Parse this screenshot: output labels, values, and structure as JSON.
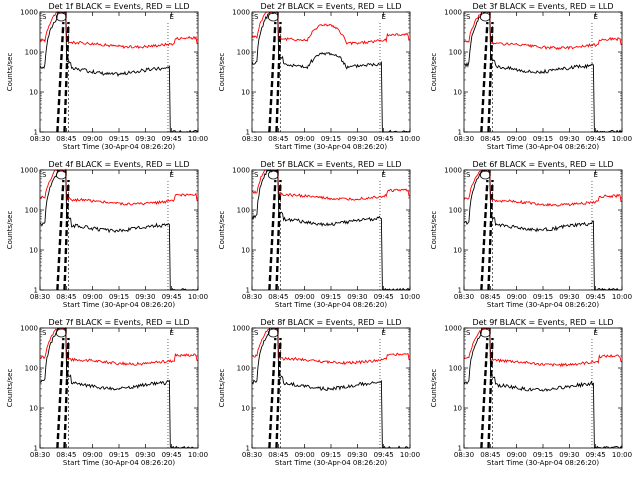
{
  "common": {
    "title_suffix": "BLACK = Events, RED = LLD",
    "ylabel": "Counts/sec",
    "y_ticks": [
      "1000",
      "100",
      "10",
      "1"
    ],
    "y_scale": "log",
    "ylim": [
      1,
      1000
    ],
    "x_ticks_a": [
      "08:30",
      "08:45",
      "09:00",
      "09:15",
      "09:30",
      "09:45",
      "10:00"
    ],
    "x_ticks_b": [
      "08:30",
      "08:45",
      "09:00",
      "09:15",
      "09:30",
      "09:45",
      "10:00"
    ],
    "marker_s": "S",
    "marker_e": "E",
    "colors": {
      "events": "#000000",
      "lld": "#ff0000"
    }
  },
  "chart_data": [
    {
      "type": "line",
      "title": "Det 1f",
      "xlabel": "Start Time (30-Apr-04 08:26:20)",
      "lld_level": 180,
      "evt_level": 35,
      "spike": 1.0
    },
    {
      "type": "line",
      "title": "Det 2f",
      "xlabel": "Start Time (30-Apr-04 08:26:20)",
      "lld_level": 220,
      "evt_level": 45,
      "spike": 2.5
    },
    {
      "type": "line",
      "title": "Det 3f",
      "xlabel": "Start Time (30-Apr-04 08:26:20)",
      "lld_level": 170,
      "evt_level": 40,
      "spike": 1.0
    },
    {
      "type": "line",
      "title": "Det 4f",
      "xlabel": "Start Time (30-Apr-04 08:26:20)",
      "lld_level": 190,
      "evt_level": 38,
      "spike": 1.0
    },
    {
      "type": "line",
      "title": "Det 5f",
      "xlabel": "Start Time (30-Apr-04 08:26:20)",
      "lld_level": 250,
      "evt_level": 55,
      "spike": 1.0
    },
    {
      "type": "line",
      "title": "Det 6f",
      "xlabel": "Start Time (30-Apr-04 08:26:20)",
      "lld_level": 180,
      "evt_level": 40,
      "spike": 1.0
    },
    {
      "type": "line",
      "title": "Det 7f",
      "xlabel": "Start Time (30-Apr-04 08:26:20)",
      "lld_level": 170,
      "evt_level": 38,
      "spike": 1.0
    },
    {
      "type": "line",
      "title": "Det 8f",
      "xlabel": "Start Time (30-Apr-04 08:26:20)",
      "lld_level": 180,
      "evt_level": 38,
      "spike": 1.0
    },
    {
      "type": "line",
      "title": "Det 9f",
      "xlabel": "Start Time (30-Apr-04 08:26:20)",
      "lld_level": 160,
      "evt_level": 35,
      "spike": 1.0
    }
  ]
}
